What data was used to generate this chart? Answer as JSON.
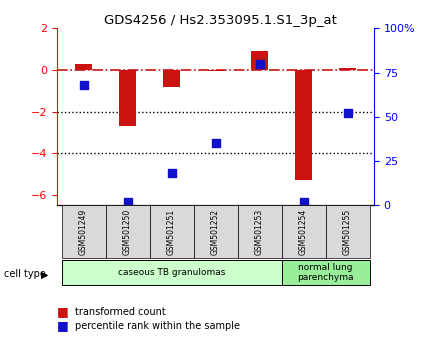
{
  "title": "GDS4256 / Hs2.353095.1.S1_3p_at",
  "samples": [
    "GSM501249",
    "GSM501250",
    "GSM501251",
    "GSM501252",
    "GSM501253",
    "GSM501254",
    "GSM501255"
  ],
  "red_values": [
    0.3,
    -2.7,
    -0.8,
    -0.05,
    0.9,
    -5.3,
    0.1
  ],
  "blue_values_pct": [
    68,
    2,
    18,
    35,
    80,
    2,
    52
  ],
  "ylim_left": [
    -6.5,
    2
  ],
  "ylim_right": [
    0,
    100
  ],
  "yticks_left": [
    -6,
    -4,
    -2,
    0,
    2
  ],
  "yticks_right": [
    0,
    25,
    50,
    75,
    100
  ],
  "ytick_labels_right": [
    "0",
    "25",
    "50",
    "75",
    "100%"
  ],
  "hline_y": 0,
  "dotted_lines": [
    -2,
    -4
  ],
  "bar_color": "#cc1111",
  "dot_color": "#1111cc",
  "dashdot_color": "#cc1111",
  "cell_type_groups": [
    {
      "label": "caseous TB granulomas",
      "start": 0,
      "end": 4,
      "color": "#ccffcc"
    },
    {
      "label": "normal lung\nparenchyma",
      "start": 5,
      "end": 6,
      "color": "#99ee99"
    }
  ],
  "legend_entries": [
    {
      "label": "transformed count",
      "color": "#cc1111"
    },
    {
      "label": "percentile rank within the sample",
      "color": "#1111cc"
    }
  ],
  "cell_type_label": "cell type",
  "background_color": "#ffffff",
  "plot_bg": "#ffffff",
  "bar_width": 0.4,
  "dot_size": 40
}
